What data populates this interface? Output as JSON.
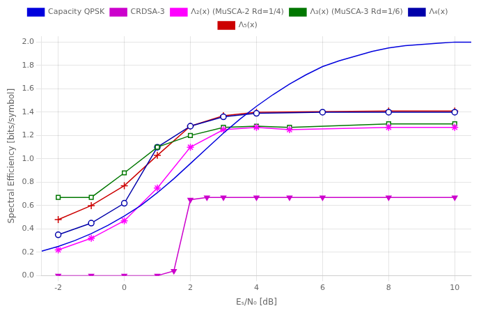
{
  "chart_data": {
    "type": "line",
    "xlabel": "Eₛ/N₀ [dB]",
    "ylabel": "Spectral Efficiency [bits/symbol]",
    "xlim": [
      -2.5,
      10.5
    ],
    "ylim": [
      0,
      2.05
    ],
    "xticks": [
      -2,
      0,
      2,
      4,
      6,
      8,
      10
    ],
    "yticks": [
      {
        "value": 0,
        "label": "0.0"
      },
      0.2,
      0.4,
      0.6,
      0.8,
      {
        "value": 1.0,
        "label": "1.0"
      },
      1.2,
      1.4,
      1.6,
      1.8,
      {
        "value": 2.0,
        "label": "2.0"
      }
    ],
    "grid": true,
    "legend": "top",
    "series": [
      {
        "name": "Capacity QPSK",
        "color": "#0000dd",
        "marker": "none",
        "line_style": "solid",
        "x": [
          -2.5,
          -2.0,
          -1.5,
          -1.0,
          -0.5,
          0.0,
          0.5,
          1.0,
          1.5,
          2.0,
          2.5,
          3.0,
          3.5,
          4.0,
          4.5,
          5.0,
          5.5,
          6.0,
          6.5,
          7.0,
          7.5,
          8.0,
          8.5,
          9.0,
          9.5,
          10.0,
          10.5
        ],
        "values": [
          0.21,
          0.25,
          0.3,
          0.36,
          0.43,
          0.51,
          0.6,
          0.71,
          0.83,
          0.96,
          1.09,
          1.22,
          1.34,
          1.45,
          1.55,
          1.64,
          1.72,
          1.79,
          1.84,
          1.88,
          1.92,
          1.95,
          1.97,
          1.98,
          1.99,
          2.0,
          2.0
        ]
      },
      {
        "name": "CRDSA-3",
        "color": "#cc00cc",
        "marker": "triangle_down",
        "line_style": "solid",
        "x": [
          -2.0,
          -1.0,
          0.0,
          1.0,
          1.5,
          2.0,
          2.5,
          3.0,
          4.0,
          5.0,
          6.0,
          8.0,
          10.0
        ],
        "values": [
          0.0,
          0.0,
          0.0,
          0.0,
          0.04,
          0.65,
          0.67,
          0.67,
          0.67,
          0.67,
          0.67,
          0.67,
          0.67
        ]
      },
      {
        "name": "Λ₂(x) (MuSCA-2 Rd=1/4)",
        "color": "#ff00ff",
        "marker": "star",
        "line_style": "solid",
        "x": [
          -2.0,
          -1.0,
          0.0,
          1.0,
          2.0,
          3.0,
          4.0,
          5.0,
          8.0,
          10.0
        ],
        "values": [
          0.22,
          0.32,
          0.47,
          0.75,
          1.1,
          1.25,
          1.27,
          1.25,
          1.27,
          1.27
        ]
      },
      {
        "name": "Λ₃(x) (MuSCA-3 Rd=1/6)",
        "color": "#007700",
        "marker": "square_open",
        "line_style": "solid",
        "x": [
          -2.0,
          -1.0,
          0.0,
          1.0,
          2.0,
          3.0,
          4.0,
          5.0,
          8.0,
          10.0
        ],
        "values": [
          0.67,
          0.67,
          0.88,
          1.1,
          1.2,
          1.27,
          1.28,
          1.27,
          1.3,
          1.3
        ]
      },
      {
        "name": "Λ₄(x)",
        "color": "#0000aa",
        "marker": "circle_open",
        "line_style": "solid",
        "x": [
          -2.0,
          -1.0,
          0.0,
          1.0,
          2.0,
          3.0,
          4.0,
          6.0,
          8.0,
          10.0
        ],
        "values": [
          0.35,
          0.45,
          0.62,
          1.1,
          1.28,
          1.36,
          1.39,
          1.4,
          1.4,
          1.4
        ]
      },
      {
        "name": "Λ₅(x)",
        "color": "#cc0000",
        "marker": "plus",
        "line_style": "solid",
        "x": [
          -2.0,
          -1.0,
          0.0,
          1.0,
          2.0,
          3.0,
          4.0,
          8.0,
          10.0
        ],
        "values": [
          0.48,
          0.6,
          0.77,
          1.03,
          1.28,
          1.37,
          1.4,
          1.41,
          1.41
        ]
      }
    ]
  }
}
